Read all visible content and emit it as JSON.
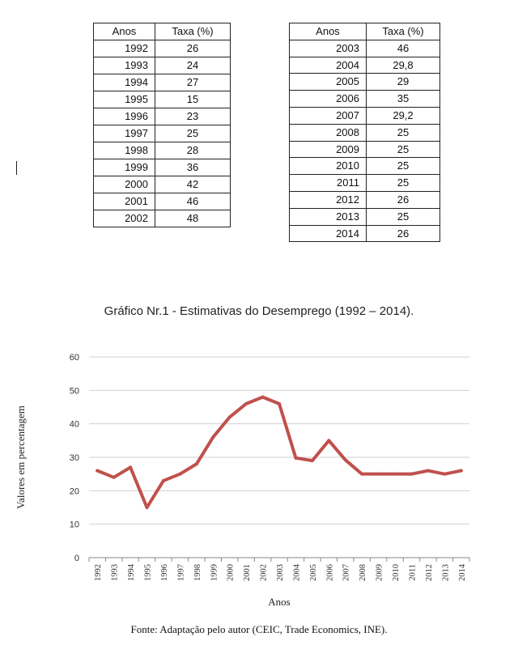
{
  "tables": {
    "left": {
      "headers": [
        "Anos",
        "Taxa (%)"
      ],
      "rows": [
        [
          "1992",
          "26"
        ],
        [
          "1993",
          "24"
        ],
        [
          "1994",
          "27"
        ],
        [
          "1995",
          "15"
        ],
        [
          "1996",
          "23"
        ],
        [
          "1997",
          "25"
        ],
        [
          "1998",
          "28"
        ],
        [
          "1999",
          "36"
        ],
        [
          "2000",
          "42"
        ],
        [
          "2001",
          "46"
        ],
        [
          "2002",
          "48"
        ]
      ]
    },
    "right": {
      "headers": [
        "Anos",
        "Taxa (%)"
      ],
      "rows": [
        [
          "2003",
          "46"
        ],
        [
          "2004",
          "29,8"
        ],
        [
          "2005",
          "29"
        ],
        [
          "2006",
          "35"
        ],
        [
          "2007",
          "29,2"
        ],
        [
          "2008",
          "25"
        ],
        [
          "2009",
          "25"
        ],
        [
          "2010",
          "25"
        ],
        [
          "2011",
          "25"
        ],
        [
          "2012",
          "26"
        ],
        [
          "2013",
          "25"
        ],
        [
          "2014",
          "26"
        ]
      ]
    }
  },
  "caption": "Gráfico Nr.1 - Estimativas do Desemprego (1992 – 2014).",
  "source": "Fonte: Adaptação pelo autor  (CEIC, Trade Economics, INE).",
  "chart_data": {
    "type": "line",
    "title": "Gráfico Nr.1 - Estimativas do Desemprego (1992 – 2014).",
    "xlabel": "Anos",
    "ylabel": "Valores em percentagem",
    "categories": [
      "1992",
      "1993",
      "1994",
      "1995",
      "1996",
      "1997",
      "1998",
      "1999",
      "2000",
      "2001",
      "2002",
      "2003",
      "2004",
      "2005",
      "2006",
      "2007",
      "2008",
      "2009",
      "2010",
      "2011",
      "2012",
      "2013",
      "2014"
    ],
    "series": [
      {
        "values": [
          26,
          24,
          27,
          15,
          23,
          25,
          28,
          36,
          42,
          46,
          48,
          46,
          29.8,
          29,
          35,
          29.2,
          25,
          25,
          25,
          25,
          26,
          25,
          26
        ],
        "color": "#c0504d"
      }
    ],
    "ylim": [
      0,
      60
    ],
    "yticks": [
      0,
      10,
      20,
      30,
      40,
      50,
      60
    ],
    "grid": true,
    "legend": "none"
  }
}
